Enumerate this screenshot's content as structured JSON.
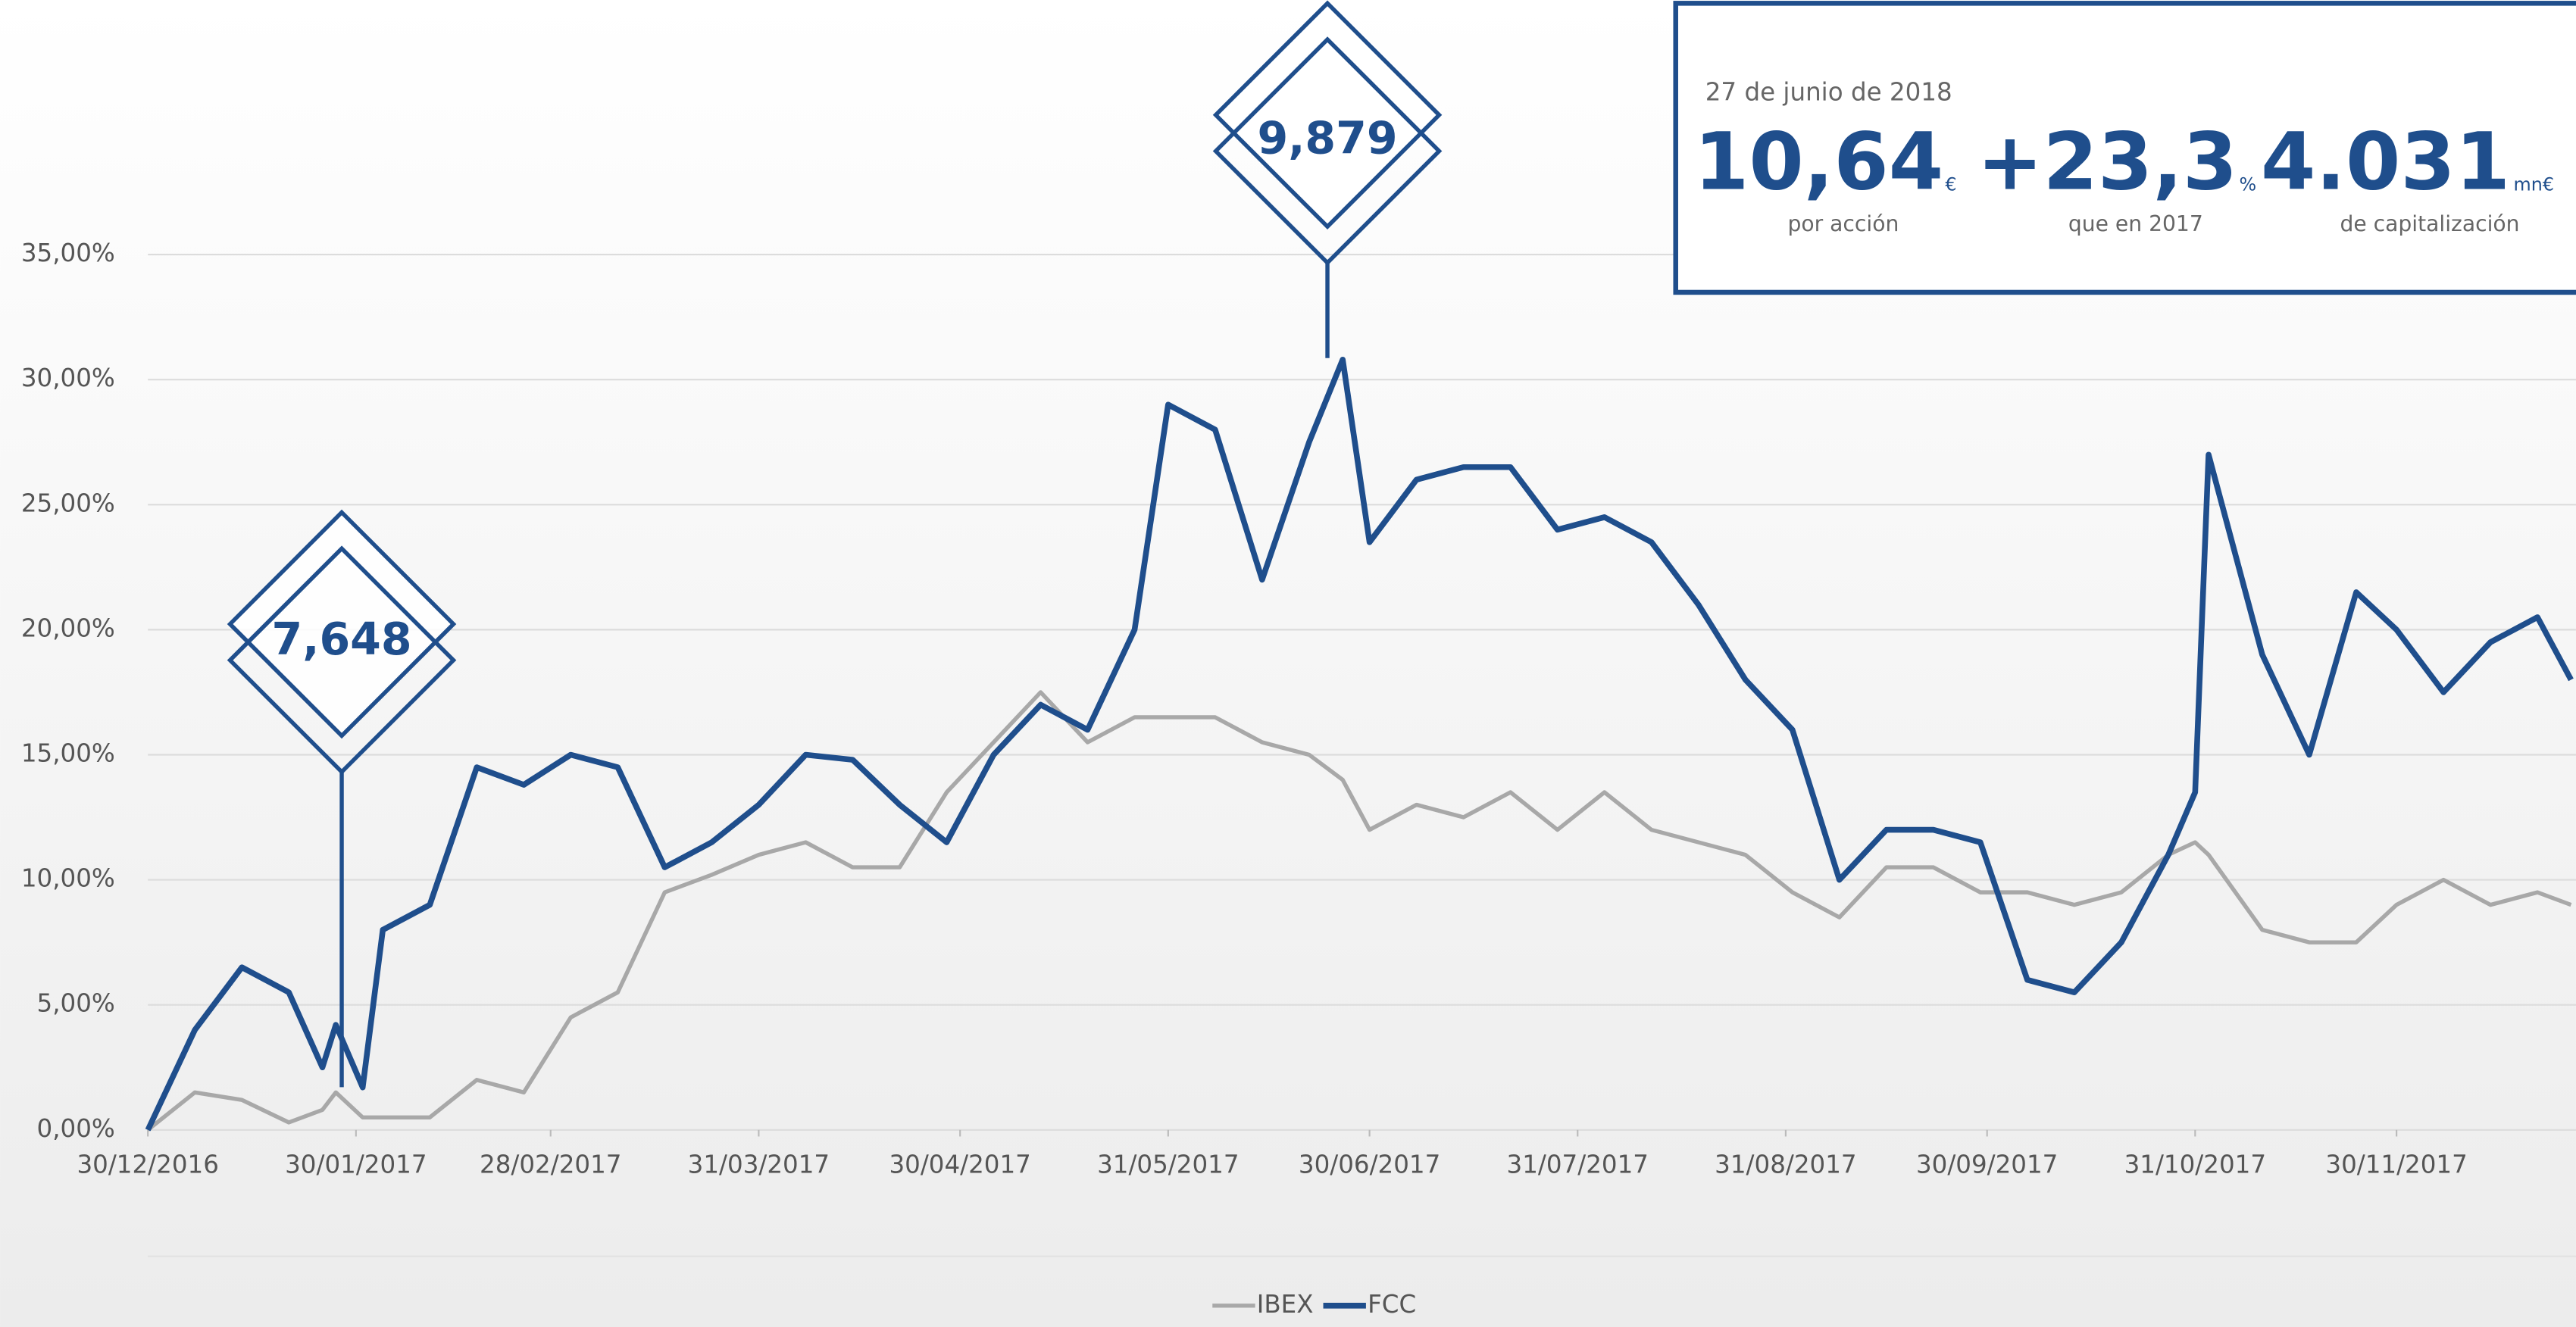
{
  "chart_data": {
    "type": "line",
    "x": [
      "30/12/2016",
      "06/01/2017",
      "13/01/2017",
      "20/01/2017",
      "25/01/2017",
      "27/01/2017",
      "31/01/2017",
      "03/02/2017",
      "10/02/2017",
      "17/02/2017",
      "24/02/2017",
      "03/03/2017",
      "10/03/2017",
      "17/03/2017",
      "24/03/2017",
      "31/03/2017",
      "07/04/2017",
      "14/04/2017",
      "21/04/2017",
      "28/04/2017",
      "05/05/2017",
      "12/05/2017",
      "19/05/2017",
      "26/05/2017",
      "31/05/2017",
      "07/06/2017",
      "14/06/2017",
      "21/06/2017",
      "26/06/2017",
      "30/06/2017",
      "07/07/2017",
      "14/07/2017",
      "21/07/2017",
      "28/07/2017",
      "04/08/2017",
      "11/08/2017",
      "18/08/2017",
      "25/08/2017",
      "01/09/2017",
      "08/09/2017",
      "15/09/2017",
      "22/09/2017",
      "29/09/2017",
      "06/10/2017",
      "13/10/2017",
      "20/10/2017",
      "27/10/2017",
      "31/10/2017",
      "02/11/2017",
      "10/11/2017",
      "17/11/2017",
      "24/11/2017",
      "30/11/2017",
      "07/12/2017",
      "14/12/2017",
      "21/12/2017",
      "26/12/2017"
    ],
    "series": [
      {
        "name": "IBEX",
        "color": "#a8a8a8",
        "values": [
          0,
          1.5,
          1.2,
          0.3,
          0.8,
          1.5,
          0.5,
          0.5,
          0.5,
          2.0,
          1.5,
          4.5,
          5.5,
          9.5,
          10.2,
          11,
          11.5,
          10.5,
          10.5,
          13.5,
          15.5,
          17.5,
          15.5,
          16.5,
          16.5,
          16.5,
          15.5,
          15,
          14,
          12,
          13,
          12.5,
          13.5,
          12,
          13.5,
          12,
          11.5,
          11,
          9.5,
          8.5,
          10.5,
          10.5,
          9.5,
          9.5,
          9,
          9.5,
          11,
          11.5,
          11,
          8,
          7.5,
          7.5,
          9,
          10,
          9,
          9.5,
          9
        ]
      },
      {
        "name": "FCC",
        "color": "#1f4e8c",
        "values": [
          0,
          4.0,
          6.5,
          5.5,
          2.5,
          4.2,
          1.7,
          8.0,
          9,
          14.5,
          13.8,
          15,
          14.5,
          10.5,
          11.5,
          13,
          15,
          14.8,
          13,
          11.5,
          15,
          17,
          16,
          20,
          29,
          28,
          22,
          27.5,
          30.8,
          23.5,
          26,
          26.5,
          26.5,
          24,
          24.5,
          23.5,
          21,
          18,
          16,
          10,
          12,
          12,
          11.5,
          6,
          5.5,
          7.5,
          11,
          13.5,
          27,
          19,
          15,
          21.5,
          20,
          17.5,
          19.5,
          20.5,
          18
        ]
      }
    ],
    "xlim": [
      "30/12/2016",
      "26/12/2017"
    ],
    "xticks": [
      "30/12/2016",
      "30/01/2017",
      "28/02/2017",
      "31/03/2017",
      "30/04/2017",
      "31/05/2017",
      "30/06/2017",
      "31/07/2017",
      "31/08/2017",
      "30/09/2017",
      "31/10/2017",
      "30/11/2017"
    ],
    "ylim": [
      0,
      35
    ],
    "yticks": [
      {
        "value": 0,
        "label": "0,00%"
      },
      {
        "value": 5,
        "label": "5,00%"
      },
      {
        "value": 10,
        "label": "10,00%"
      },
      {
        "value": 15,
        "label": "15,00%"
      },
      {
        "value": 20,
        "label": "20,00%"
      },
      {
        "value": 25,
        "label": "25,00%"
      },
      {
        "value": 30,
        "label": "30,00%"
      },
      {
        "value": 35,
        "label": "35,00%"
      }
    ],
    "grid": true,
    "legend": "bottom",
    "annotations": [
      "7,648",
      "9,879"
    ],
    "info": {
      "date": "27 de junio de 2018",
      "items": [
        {
          "value": "10,64",
          "unit": "€",
          "label": "por acción"
        },
        {
          "value": "+23,3",
          "unit": "%",
          "label": "que en 2017"
        },
        {
          "value": "4.031",
          "unit": "mn€",
          "label": "de capitalización"
        }
      ]
    }
  }
}
